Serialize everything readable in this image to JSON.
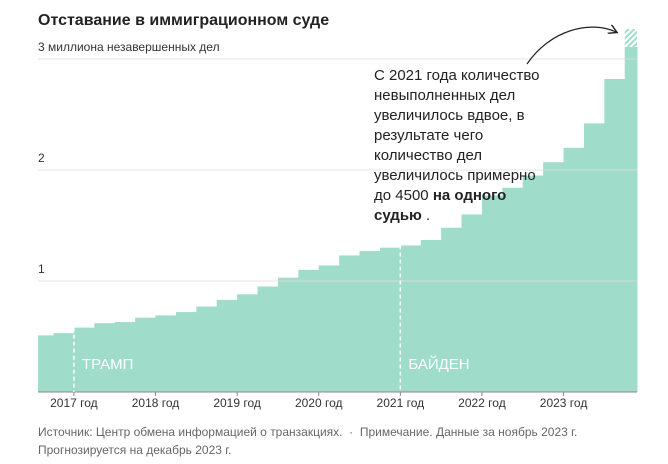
{
  "chart_data": {
    "type": "step-area",
    "title": "Отставание в иммиграционном суде",
    "x": [
      2016.5,
      2016.75,
      2017.0,
      2017.25,
      2017.5,
      2017.75,
      2018.0,
      2018.25,
      2018.5,
      2018.75,
      2019.0,
      2019.25,
      2019.5,
      2019.75,
      2020.0,
      2020.25,
      2020.5,
      2020.75,
      2021.0,
      2021.25,
      2021.5,
      2021.75,
      2022.0,
      2022.25,
      2022.5,
      2022.75,
      2023.0,
      2023.25,
      2023.5,
      2023.75
    ],
    "values": [
      0.51,
      0.53,
      0.58,
      0.62,
      0.63,
      0.67,
      0.69,
      0.72,
      0.77,
      0.83,
      0.88,
      0.95,
      1.03,
      1.1,
      1.14,
      1.23,
      1.27,
      1.3,
      1.32,
      1.37,
      1.48,
      1.6,
      1.77,
      1.84,
      1.95,
      2.07,
      2.2,
      2.42,
      2.82,
      3.11
    ],
    "forecast_value": 3.27,
    "color": "#9fdcc9",
    "xlim": [
      2016.56,
      2023.9
    ],
    "xticks": [
      {
        "value": 2017,
        "label": "2017 год"
      },
      {
        "value": 2018,
        "label": "2018 год"
      },
      {
        "value": 2019,
        "label": "2019 год"
      },
      {
        "value": 2020,
        "label": "2020 год"
      },
      {
        "value": 2021,
        "label": "2021 год"
      },
      {
        "value": 2022,
        "label": "2022 год"
      },
      {
        "value": 2023,
        "label": "2023 год"
      }
    ],
    "ylim": [
      0,
      3
    ],
    "yticks": [
      1,
      2,
      {
        "value": 3,
        "label": "3 миллиона незавершенных дел"
      }
    ],
    "grid": true,
    "markers": [
      {
        "x": 2017.0,
        "label": "ТРАМП"
      },
      {
        "x": 2021.0,
        "label": "БАЙДЕН"
      }
    ],
    "annotation": {
      "text": "С 2021 года количество невыполненных дел увеличилось вдвое, в результате чего количество дел увеличилось примерно до 4500",
      "bold": "на одного судью",
      "end": "."
    },
    "source": "Источник: Центр обмена информацией о транзакциях.",
    "note": "Примечание. Данные за ноябрь 2023 г. Прогнозируется на декабрь 2023 г."
  }
}
